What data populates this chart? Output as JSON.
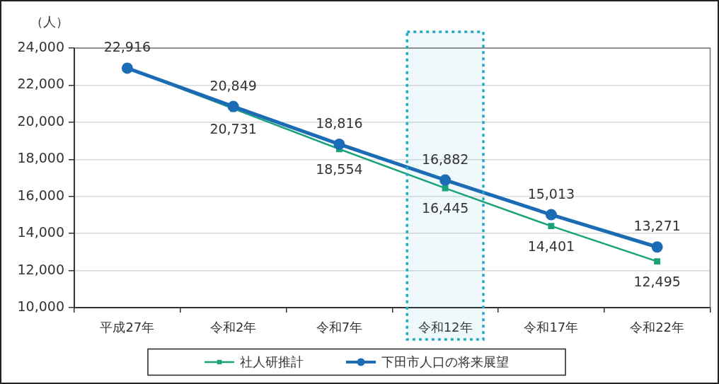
{
  "chart_data": {
    "type": "line",
    "ylabel": "（人）",
    "categories": [
      "平成27年",
      "令和2年",
      "令和7年",
      "令和12年",
      "令和17年",
      "令和22年"
    ],
    "series": [
      {
        "name": "社人研推計",
        "color": "#1ba17b",
        "marker": "square",
        "values": [
          22916,
          20731,
          18554,
          16445,
          14401,
          12495
        ],
        "value_labels": [
          null,
          "20,731",
          "18,554",
          "16,445",
          "14,401",
          "12,495"
        ]
      },
      {
        "name": "下田市人口の将来展望",
        "color": "#1b6cb5",
        "marker": "circle",
        "values": [
          22916,
          20849,
          18816,
          16882,
          15013,
          13271
        ],
        "value_labels": [
          "22,916",
          "20,849",
          "18,816",
          "16,882",
          "15,013",
          "13,271"
        ]
      }
    ],
    "ylim": [
      10000,
      24000
    ],
    "yticks": [
      {
        "value": 10000,
        "label": "10,000"
      },
      {
        "value": 12000,
        "label": "12,000"
      },
      {
        "value": 14000,
        "label": "14,000"
      },
      {
        "value": 16000,
        "label": "16,000"
      },
      {
        "value": 18000,
        "label": "18,000"
      },
      {
        "value": 20000,
        "label": "20,000"
      },
      {
        "value": 22000,
        "label": "22,000"
      },
      {
        "value": 24000,
        "label": "24,000"
      }
    ],
    "grid": "y",
    "legend": "bottom",
    "bands": [
      {
        "axis": "x",
        "from": "令和12年",
        "to": "令和12年",
        "color": "#22aac4"
      }
    ]
  }
}
